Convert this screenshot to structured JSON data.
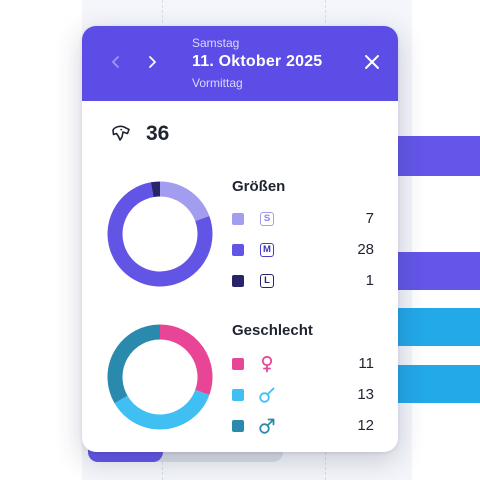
{
  "header": {
    "weekday": "Samstag",
    "date": "11. Oktober 2025",
    "daypart": "Vormittag"
  },
  "summary": {
    "icon": "dog-head-icon",
    "total": "36"
  },
  "sizes": {
    "title": "Größen",
    "items": [
      {
        "badge": "S",
        "count": "7",
        "value": 7,
        "color": "#a39df0"
      },
      {
        "badge": "M",
        "count": "28",
        "value": 28,
        "color": "#6254e4"
      },
      {
        "badge": "L",
        "count": "1",
        "value": 1,
        "color": "#29246a"
      }
    ]
  },
  "gender": {
    "title": "Geschlecht",
    "items": [
      {
        "icon": "female-icon",
        "count": "11",
        "value": 11,
        "color": "#e94597"
      },
      {
        "icon": "male-neutered-icon",
        "count": "13",
        "value": 13,
        "color": "#3fbff2"
      },
      {
        "icon": "male-icon",
        "count": "12",
        "value": 12,
        "color": "#2a8aae"
      }
    ]
  }
}
